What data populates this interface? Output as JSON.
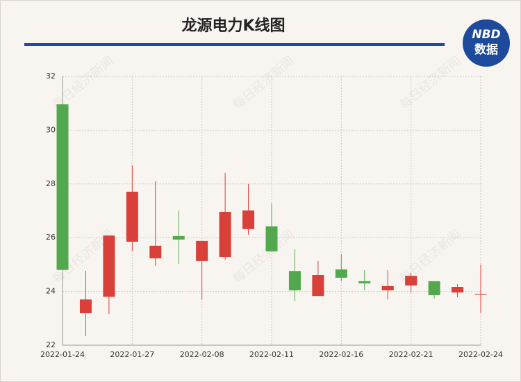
{
  "chart_data": {
    "type": "candlestick",
    "title": "龙源电力K线图",
    "watermark": "每日经济新闻",
    "logo": {
      "top": "NBD",
      "bottom": "数据"
    },
    "categories": [
      "2022-01-24",
      null,
      null,
      "2022-01-27",
      null,
      null,
      "2022-02-08",
      null,
      null,
      "2022-02-11",
      null,
      null,
      "2022-02-16",
      null,
      null,
      "2022-02-21",
      null,
      null,
      "2022-02-24"
    ],
    "open": [
      30.96,
      23.19,
      23.8,
      25.85,
      25.23,
      26.06,
      25.13,
      25.28,
      26.32,
      26.42,
      24.76,
      23.83,
      24.82,
      24.38,
      24.04,
      24.22,
      24.38,
      23.96,
      23.88
    ],
    "close": [
      24.8,
      23.7,
      26.08,
      27.71,
      25.7,
      25.93,
      25.88,
      26.96,
      27.01,
      25.49,
      24.04,
      24.61,
      24.51,
      24.3,
      24.2,
      24.58,
      23.86,
      24.17,
      23.91
    ],
    "high": [
      30.96,
      24.76,
      26.08,
      28.69,
      28.1,
      27.01,
      25.88,
      28.41,
      28.0,
      27.27,
      25.57,
      25.13,
      25.38,
      24.79,
      24.79,
      24.69,
      24.38,
      24.27,
      25.0
    ],
    "low": [
      24.8,
      22.34,
      23.16,
      25.51,
      24.95,
      25.02,
      23.7,
      25.18,
      26.11,
      25.49,
      23.63,
      23.83,
      24.38,
      24.04,
      23.7,
      23.96,
      23.73,
      23.78,
      23.21
    ],
    "up_color": "#d9403a",
    "down_color": "#52a84d",
    "ylim": [
      22,
      32
    ],
    "yticks": [
      22,
      24,
      26,
      28,
      30,
      32
    ],
    "grid": true
  }
}
